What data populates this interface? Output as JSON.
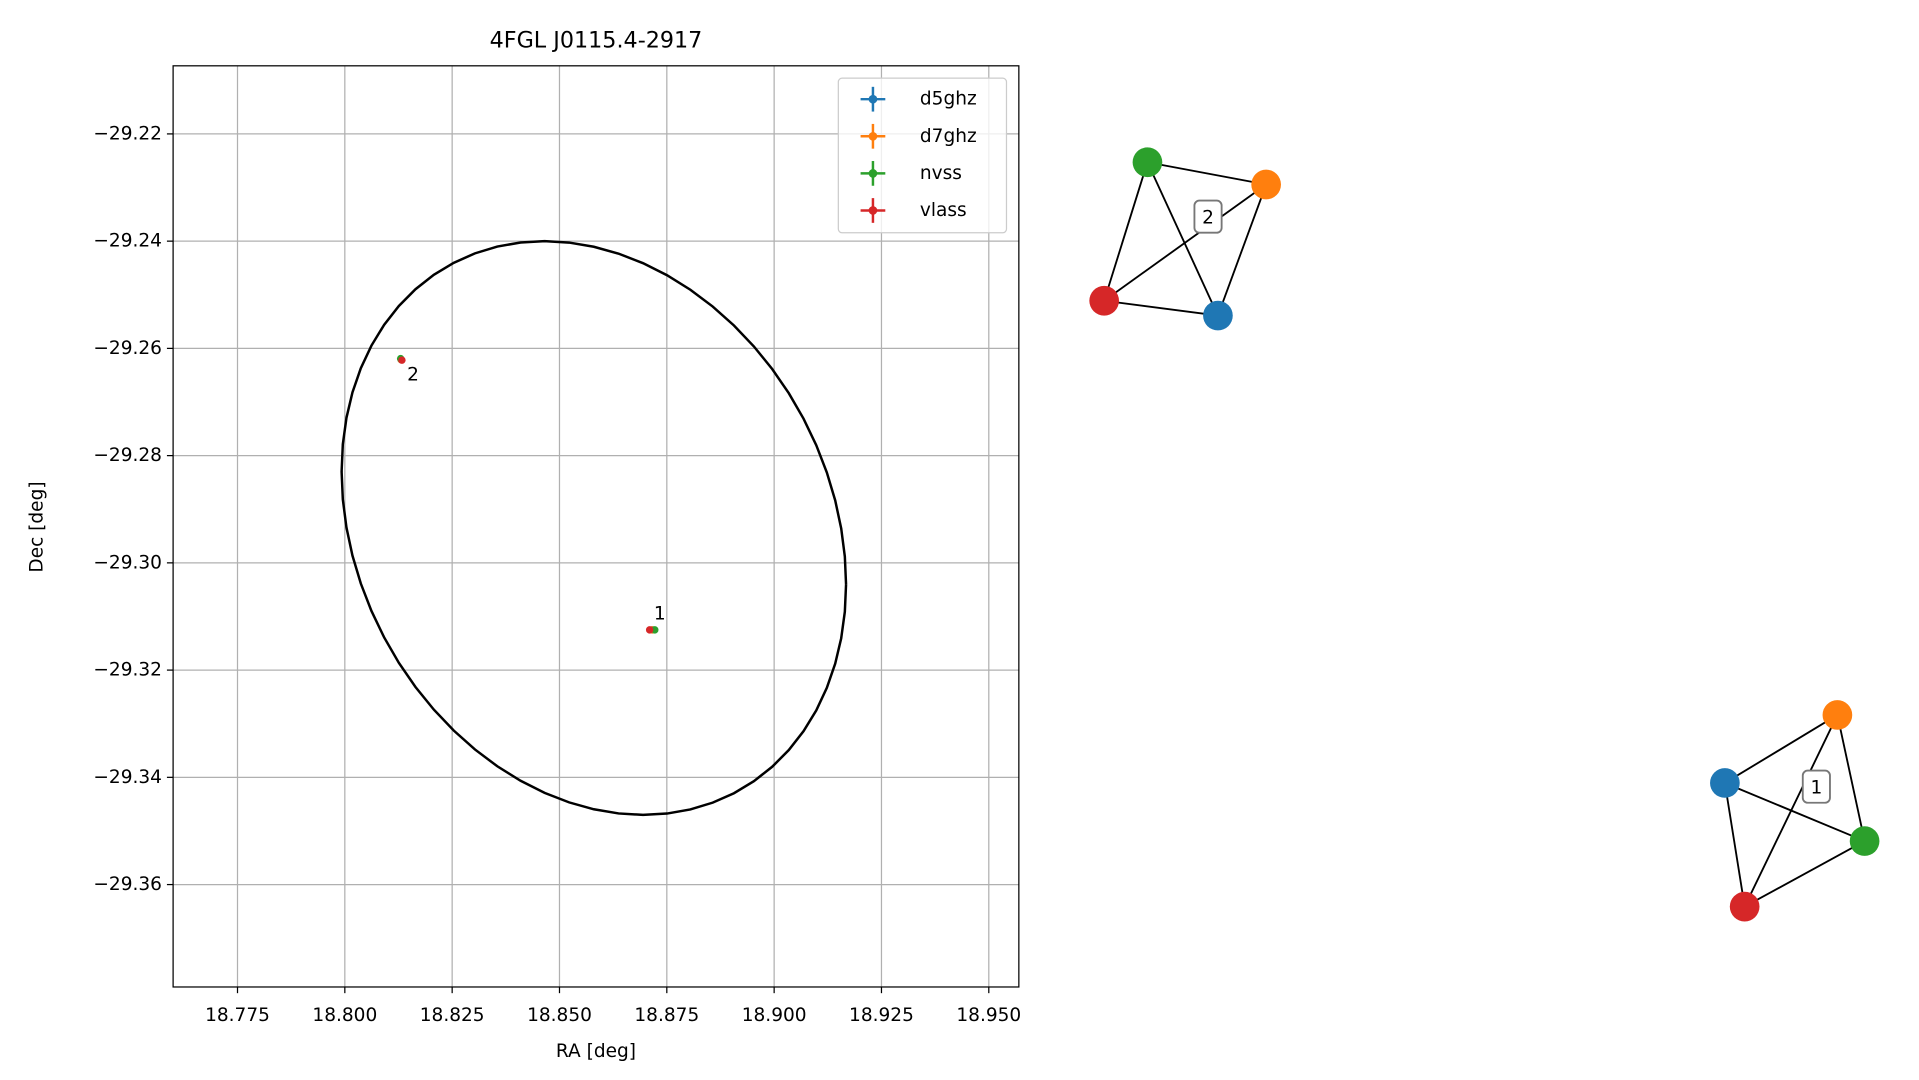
{
  "chart_data": {
    "type": "scatter",
    "title": "4FGL J0115.4-2917",
    "x_label": "RA [deg]",
    "y_label": "Dec [deg]",
    "xlim": [
      18.76,
      18.957
    ],
    "ylim": [
      -29.3791,
      -29.2073
    ],
    "xticks": [
      18.775,
      {
        "value": 18.8,
        "label": "18.800"
      },
      18.825,
      {
        "value": 18.85,
        "label": "18.850"
      },
      18.875,
      {
        "value": 18.9,
        "label": "18.900"
      },
      18.925,
      {
        "value": 18.95,
        "label": "18.950"
      }
    ],
    "yticks": [
      {
        "value": -29.22,
        "label": "−29.22"
      },
      {
        "value": -29.24,
        "label": "−29.24"
      },
      {
        "value": -29.26,
        "label": "−29.26"
      },
      {
        "value": -29.28,
        "label": "−29.28"
      },
      {
        "value": -29.3,
        "label": "−29.30"
      },
      {
        "value": -29.32,
        "label": "−29.32"
      },
      {
        "value": -29.34,
        "label": "−29.34"
      },
      {
        "value": -29.36,
        "label": "−29.36"
      }
    ],
    "grid": true,
    "legend": "upper right",
    "series": [
      {
        "name": "d5ghz",
        "color": "#1f77b4",
        "x": [
          18.8131,
          18.8716
        ],
        "y": [
          -29.2621,
          -29.3125
        ]
      },
      {
        "name": "d7ghz",
        "color": "#ff7f0e",
        "x": [
          18.8131,
          18.8716
        ],
        "y": [
          -29.2621,
          -29.3125
        ]
      },
      {
        "name": "nvss",
        "color": "#2ca02c",
        "x": [
          18.813,
          18.8722
        ],
        "y": [
          -29.2619,
          -29.3125
        ]
      },
      {
        "name": "vlass",
        "color": "#d62728",
        "x": [
          18.8133,
          18.871
        ],
        "y": [
          -29.2622,
          -29.3125
        ]
      }
    ],
    "annotations": [
      {
        "text": "1",
        "x": 18.872,
        "y": -29.3095
      },
      {
        "text": "2",
        "x": 18.8145,
        "y": -29.265
      }
    ],
    "ellipse": {
      "center_x": 18.858,
      "center_y": -29.2935,
      "half_width": 0.05875,
      "half_height": 0.0535,
      "phase": -0.198
    }
  },
  "graphs": [
    {
      "label": "2"
    },
    {
      "label": "1"
    }
  ]
}
